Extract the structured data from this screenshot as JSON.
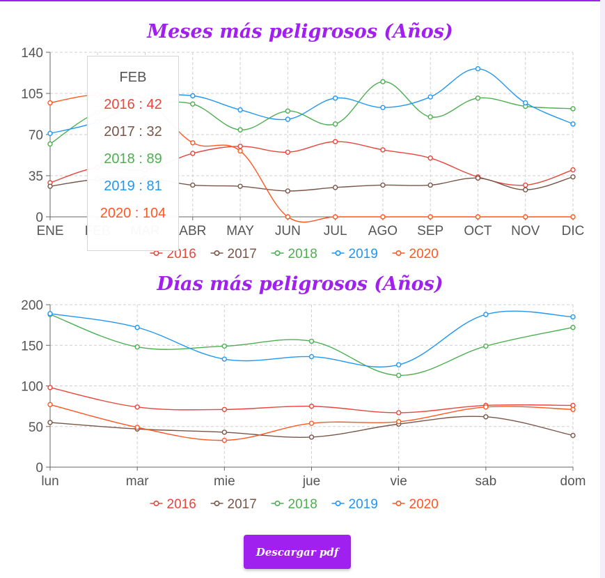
{
  "colors": {
    "2016": "#e8453c",
    "2017": "#795548",
    "2018": "#4caf50",
    "2019": "#2196f3",
    "2020": "#ff5722",
    "accent": "#a020f0"
  },
  "chart_data": [
    {
      "type": "line",
      "title": "Meses más peligrosos (Años)",
      "categories": [
        "ENE",
        "FEB",
        "MAR",
        "ABR",
        "MAY",
        "JUN",
        "JUL",
        "AGO",
        "SEP",
        "OCT",
        "NOV",
        "DIC"
      ],
      "x_tick_labels": [
        "ENE",
        "FEB",
        "MAR",
        "ABR",
        "MAY",
        "JUN",
        "JUL",
        "AGO",
        "SEP",
        "OCT",
        "NOV",
        "DIC"
      ],
      "ylim": [
        0,
        140
      ],
      "yticks": [
        0,
        35,
        70,
        105,
        140
      ],
      "grid": true,
      "legend": "bottom",
      "series": [
        {
          "name": "2016",
          "values": [
            29,
            42,
            40,
            54,
            60,
            55,
            64,
            57,
            50,
            34,
            27,
            40
          ]
        },
        {
          "name": "2017",
          "values": [
            26,
            32,
            33,
            27,
            26,
            22,
            25,
            27,
            27,
            33,
            23,
            34
          ]
        },
        {
          "name": "2018",
          "values": [
            62,
            89,
            95,
            96,
            74,
            90,
            79,
            115,
            85,
            101,
            94,
            92
          ]
        },
        {
          "name": "2019",
          "values": [
            71,
            81,
            100,
            103,
            91,
            83,
            101,
            93,
            102,
            126,
            97,
            79
          ]
        },
        {
          "name": "2020",
          "values": [
            97,
            104,
            100,
            63,
            56,
            0,
            0,
            0,
            0,
            0,
            0,
            0
          ]
        }
      ]
    },
    {
      "type": "line",
      "title": "Días más peligrosos (Años)",
      "categories": [
        "lun",
        "mar",
        "mie",
        "jue",
        "vie",
        "sab",
        "dom"
      ],
      "ylim": [
        0,
        200
      ],
      "yticks": [
        0,
        50,
        100,
        150,
        200
      ],
      "grid": true,
      "legend": "bottom",
      "series": [
        {
          "name": "2016",
          "values": [
            98,
            74,
            71,
            75,
            67,
            76,
            76
          ]
        },
        {
          "name": "2017",
          "values": [
            55,
            47,
            43,
            37,
            53,
            62,
            39
          ]
        },
        {
          "name": "2018",
          "values": [
            188,
            148,
            149,
            155,
            113,
            149,
            172
          ]
        },
        {
          "name": "2019",
          "values": [
            189,
            172,
            133,
            136,
            126,
            188,
            185
          ]
        },
        {
          "name": "2020",
          "values": [
            77,
            49,
            33,
            54,
            56,
            74,
            71
          ]
        }
      ]
    }
  ],
  "tooltip": {
    "title": "FEB",
    "lines": [
      {
        "year": "2016",
        "text": "2016 : 42"
      },
      {
        "year": "2017",
        "text": "2017 : 32"
      },
      {
        "year": "2018",
        "text": "2018 : 89"
      },
      {
        "year": "2019",
        "text": "2019 : 81"
      },
      {
        "year": "2020",
        "text": "2020 : 104"
      }
    ]
  },
  "button": {
    "label": "Descargar pdf"
  }
}
